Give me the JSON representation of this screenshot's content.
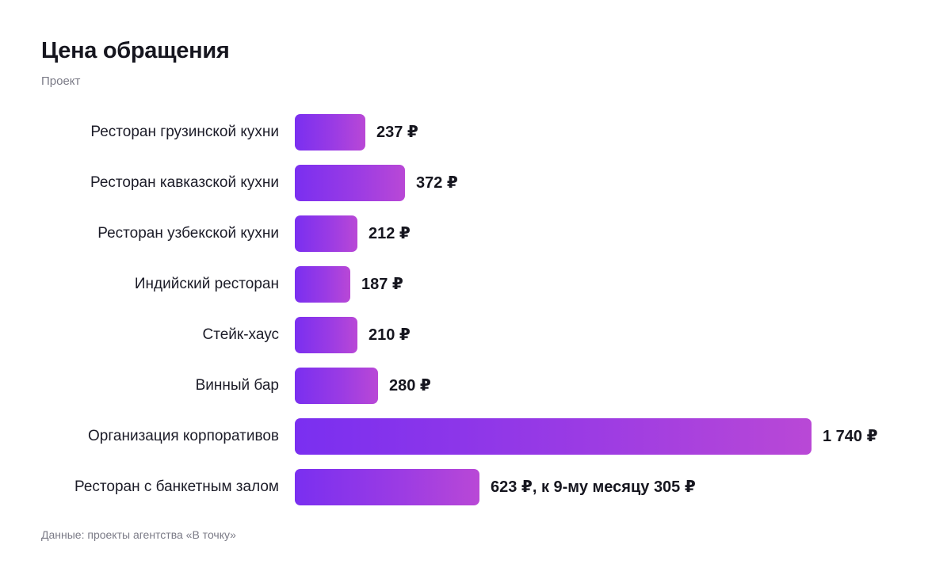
{
  "title": "Цена обращения",
  "subtitle": "Проект",
  "source": "Данные: проекты агентства «В точку»",
  "colors": {
    "bar_start": "#7a2ff0",
    "bar_end": "#b948d6",
    "text": "#16161f",
    "muted": "#7a7a86"
  },
  "chart_data": {
    "type": "bar",
    "orientation": "horizontal",
    "categories": [
      "Ресторан грузинской кухни",
      "Ресторан кавказской кухни",
      "Ресторан узбекской кухни",
      "Индийский ресторан",
      "Стейк-хаус",
      "Винный бар",
      "Организация корпоративов",
      "Ресторан с банкетным залом"
    ],
    "values": [
      237,
      372,
      212,
      187,
      210,
      280,
      1740,
      623
    ],
    "value_labels": [
      "237 ₽",
      "372 ₽",
      "212 ₽",
      "187 ₽",
      "210 ₽",
      "280 ₽",
      "1 740 ₽",
      "623 ₽, к 9-му месяцу 305 ₽"
    ],
    "unit": "₽",
    "xlim": [
      0,
      1740
    ],
    "grid": false,
    "legend": "none"
  }
}
